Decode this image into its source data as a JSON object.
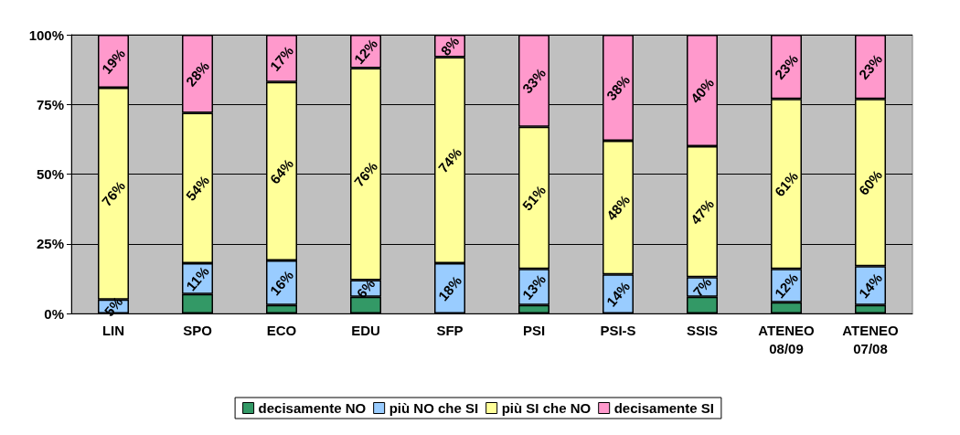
{
  "chart_data": {
    "type": "bar",
    "stacked": true,
    "categories": [
      "LIN",
      "SPO",
      "ECO",
      "EDU",
      "SFP",
      "PSI",
      "PSI-S",
      "SSIS",
      "ATENEO\n08/09",
      "ATENEO\n07/08"
    ],
    "series": [
      {
        "name": "decisamente NO",
        "color": "#339966",
        "values": [
          0,
          7,
          3,
          6,
          0,
          3,
          0,
          6,
          4,
          3
        ],
        "value_labels": [
          null,
          null,
          null,
          null,
          null,
          null,
          null,
          null,
          null,
          null
        ]
      },
      {
        "name": "più NO che SI",
        "color": "#99ccff",
        "values": [
          5,
          11,
          16,
          6,
          18,
          13,
          14,
          7,
          12,
          14
        ],
        "value_labels": [
          "5%",
          "11%",
          "16%",
          "6%",
          "18%",
          "13%",
          "14%",
          "7%",
          "12%",
          "14%"
        ]
      },
      {
        "name": "più SI che NO",
        "color": "#ffff99",
        "values": [
          76,
          54,
          64,
          76,
          74,
          51,
          48,
          47,
          61,
          60
        ],
        "value_labels": [
          "76%",
          "54%",
          "64%",
          "76%",
          "74%",
          "51%",
          "48%",
          "47%",
          "61%",
          "60%"
        ]
      },
      {
        "name": "decisamente SI",
        "color": "#ff99cc",
        "values": [
          19,
          28,
          17,
          12,
          8,
          33,
          38,
          40,
          23,
          23
        ],
        "value_labels": [
          "19%",
          "28%",
          "17%",
          "12%",
          "8%",
          "33%",
          "38%",
          "40%",
          "23%",
          "23%"
        ]
      }
    ],
    "ylim": [
      0,
      100
    ],
    "yticks": [
      {
        "value": 0,
        "label": "0%"
      },
      {
        "value": 25,
        "label": "25%"
      },
      {
        "value": 50,
        "label": "50%"
      },
      {
        "value": 75,
        "label": "75%"
      },
      {
        "value": 100,
        "label": "100%"
      }
    ],
    "grid": "y",
    "legend": "bottom"
  }
}
